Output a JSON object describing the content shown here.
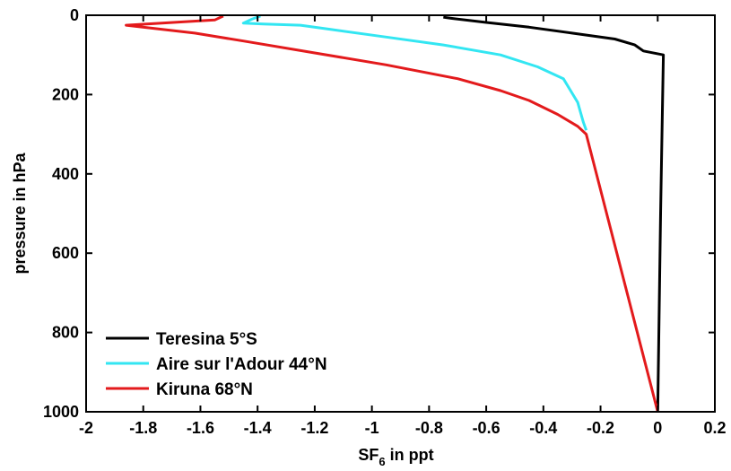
{
  "chart_data": {
    "type": "line",
    "title": "",
    "xlabel_main": "SF",
    "xlabel_sub": "6",
    "xlabel_tail": " in ppt",
    "ylabel": "pressure in hPa",
    "xlim": [
      -2,
      0.2
    ],
    "ylim": [
      0,
      1000
    ],
    "y_inverted": true,
    "grid": false,
    "legend_position": "bottom-left",
    "xticks": [
      -2,
      -1.8,
      -1.6,
      -1.4,
      -1.2,
      -1,
      -0.8,
      -0.6,
      -0.4,
      -0.2,
      0,
      0.2
    ],
    "xtick_labels": [
      "-2",
      "-1.8",
      "-1.6",
      "-1.4",
      "-1.2",
      "-1",
      "-0.8",
      "-0.6",
      "-0.4",
      "-0.2",
      "0",
      "0.2"
    ],
    "yticks": [
      0,
      200,
      400,
      600,
      800,
      1000
    ],
    "ytick_labels": [
      "0",
      "200",
      "400",
      "600",
      "800",
      "1000"
    ],
    "series": [
      {
        "name": "Teresina 5°S",
        "color": "#000000",
        "x": [
          -0.75,
          -0.72,
          -0.6,
          -0.45,
          -0.3,
          -0.15,
          -0.08,
          -0.05,
          0.02,
          0.01,
          0.0
        ],
        "y": [
          5,
          8,
          18,
          30,
          45,
          60,
          75,
          90,
          100,
          500,
          1000
        ]
      },
      {
        "name": "Aire sur l'Adour 44°N",
        "color": "#33e6f2",
        "x": [
          -1.39,
          -1.42,
          -1.45,
          -1.38,
          -1.25,
          -1.15,
          -0.95,
          -0.75,
          -0.55,
          -0.42,
          -0.33,
          -0.28,
          -0.26,
          -0.25
        ],
        "y": [
          2,
          10,
          20,
          22,
          25,
          35,
          55,
          75,
          100,
          130,
          160,
          220,
          270,
          290
        ]
      },
      {
        "name": "Kiruna 68°N",
        "color": "#e31a1c",
        "x": [
          -1.52,
          -1.55,
          -1.86,
          -1.62,
          -1.45,
          -1.2,
          -0.95,
          -0.7,
          -0.55,
          -0.45,
          -0.35,
          -0.28,
          -0.25,
          0.0
        ],
        "y": [
          2,
          12,
          25,
          45,
          65,
          95,
          125,
          160,
          190,
          215,
          250,
          280,
          300,
          1000
        ]
      }
    ]
  }
}
